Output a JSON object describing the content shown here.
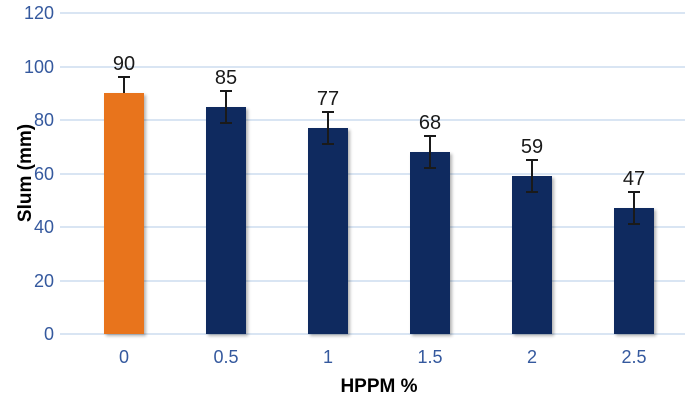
{
  "chart_data": {
    "type": "bar",
    "title": "",
    "xlabel": "HPPM %",
    "ylabel": "Slum (mm)",
    "categories": [
      "0",
      "0.5",
      "1",
      "1.5",
      "2",
      "2.5"
    ],
    "values": [
      90,
      85,
      77,
      68,
      59,
      47
    ],
    "data_labels": [
      "90",
      "85",
      "77",
      "68",
      "59",
      "47"
    ],
    "error_bars": [
      6,
      6,
      6,
      6,
      6,
      6
    ],
    "error_bar_sides": [
      "plus",
      "both",
      "both",
      "both",
      "both",
      "both"
    ],
    "ylim": [
      0,
      120
    ],
    "yticks": [
      0,
      20,
      40,
      60,
      80,
      100,
      120
    ],
    "grid": true,
    "legend": "none",
    "bar_colors": [
      "#E8741C",
      "#0F2A5F",
      "#0F2A5F",
      "#0F2A5F",
      "#0F2A5F",
      "#0F2A5F"
    ],
    "colors": {
      "tick_label": "#35599E",
      "gridline": "#D9E5F3",
      "data_label": "#1A1A1A",
      "error_bar": "#1A1A1A",
      "axis_title": "#000000",
      "background": "#FFFFFF"
    }
  }
}
